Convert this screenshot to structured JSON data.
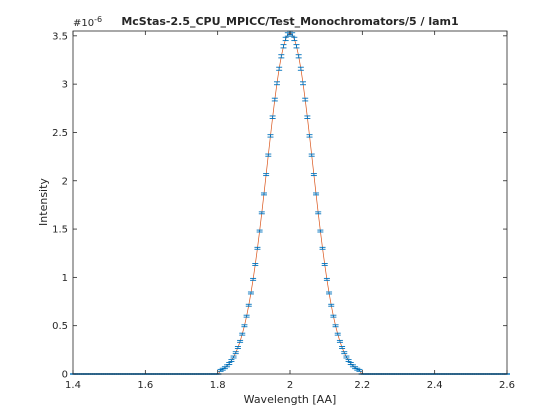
{
  "chart_data": {
    "type": "line",
    "title": "McStas-2.5_CPU_MPICC/Test_Monochromators/5 / lam1",
    "xlabel": "Wavelength [AA]",
    "ylabel": "Intensity",
    "y_exponent_label": "#10",
    "y_exponent_power": "-6",
    "xlim": [
      1.4,
      2.6
    ],
    "ylim": [
      0,
      3.55
    ],
    "xticks": [
      1.4,
      1.6,
      1.8,
      2.0,
      2.2,
      2.4,
      2.6
    ],
    "xtick_labels": [
      "1.4",
      "1.6",
      "1.8",
      "2",
      "2.2",
      "2.4",
      "2.6"
    ],
    "yticks": [
      0,
      0.5,
      1,
      1.5,
      2,
      2.5,
      3,
      3.5
    ],
    "ytick_labels": [
      "0",
      "0.5",
      "1",
      "1.5",
      "2",
      "2.5",
      "3",
      "3.5"
    ],
    "grid": false,
    "series": [
      {
        "kind": "errorbar",
        "color": "#0072bd",
        "x_start": 1.4,
        "x_step": 0.006,
        "x_count": 201,
        "peak_center": 2.0,
        "peak_value": 3.53,
        "peak_sigma": 0.0637,
        "support": [
          1.805,
          2.195
        ],
        "relative_error": 0.005
      },
      {
        "kind": "line",
        "color": "#d95319"
      }
    ]
  }
}
